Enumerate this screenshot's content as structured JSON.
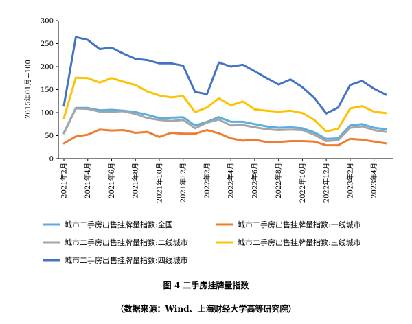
{
  "chart_data": {
    "type": "line",
    "ylabel": "2015年01月=100",
    "ylim": [
      0,
      300
    ],
    "yticks": [
      0,
      50,
      100,
      150,
      200,
      250,
      300
    ],
    "x_labels": [
      "2021年2月",
      "2021年4月",
      "2021年6月",
      "2021年8月",
      "2021年10月",
      "2021年12月",
      "2022年2月",
      "2022年4月",
      "2022年6月",
      "2022年8月",
      "2022年10月",
      "2022年12月",
      "2023年2月",
      "2023年4月"
    ],
    "x": [
      "2021年2月",
      "2021年3月",
      "2021年4月",
      "2021年5月",
      "2021年6月",
      "2021年7月",
      "2021年8月",
      "2021年9月",
      "2021年10月",
      "2021年11月",
      "2021年12月",
      "2022年1月",
      "2022年2月",
      "2022年3月",
      "2022年4月",
      "2022年5月",
      "2022年6月",
      "2022年7月",
      "2022年8月",
      "2022年9月",
      "2022年10月",
      "2022年11月",
      "2022年12月",
      "2023年1月",
      "2023年2月",
      "2023年3月",
      "2023年4月",
      "2023年5月"
    ],
    "grid": false,
    "legend_position": "bottom",
    "series": [
      {
        "name": "城市二手房出售挂牌量指数:全国",
        "color": "#5aaee0",
        "values": [
          56,
          110,
          110,
          105,
          106,
          104,
          101,
          95,
          88,
          89,
          90,
          72,
          80,
          90,
          80,
          80,
          75,
          70,
          67,
          68,
          66,
          57,
          43,
          44,
          72,
          75,
          67,
          64
        ]
      },
      {
        "name": "城市二手房出售挂牌量指数:一线城市",
        "color": "#ee7d31",
        "values": [
          33,
          48,
          52,
          63,
          61,
          62,
          56,
          58,
          47,
          56,
          54,
          54,
          62,
          55,
          44,
          39,
          41,
          36,
          36,
          38,
          38,
          37,
          29,
          29,
          43,
          41,
          37,
          33
        ]
      },
      {
        "name": "城市二手房出售挂牌量指数:二线城市",
        "color": "#a5a5a5",
        "values": [
          55,
          109,
          108,
          102,
          102,
          103,
          97,
          88,
          84,
          82,
          84,
          66,
          78,
          85,
          72,
          73,
          68,
          64,
          62,
          63,
          62,
          52,
          38,
          40,
          67,
          70,
          62,
          58
        ]
      },
      {
        "name": "城市二手房出售挂牌量指数:三线城市",
        "color": "#fdc300",
        "values": [
          88,
          176,
          175,
          165,
          175,
          167,
          160,
          146,
          137,
          133,
          136,
          101,
          111,
          131,
          116,
          124,
          107,
          104,
          102,
          104,
          99,
          84,
          59,
          65,
          109,
          114,
          102,
          99
        ]
      },
      {
        "name": "城市二手房出售挂牌量指数:四线城市",
        "color": "#4473c4",
        "values": [
          115,
          264,
          258,
          238,
          241,
          228,
          217,
          214,
          207,
          207,
          202,
          145,
          140,
          209,
          200,
          204,
          190,
          175,
          161,
          172,
          155,
          132,
          98,
          111,
          160,
          169,
          152,
          139
        ]
      }
    ]
  },
  "figure": {
    "title": "图 4  二手房挂牌量指数",
    "source": "（数据来源：Wind、上海财经大学高等研究院）"
  }
}
